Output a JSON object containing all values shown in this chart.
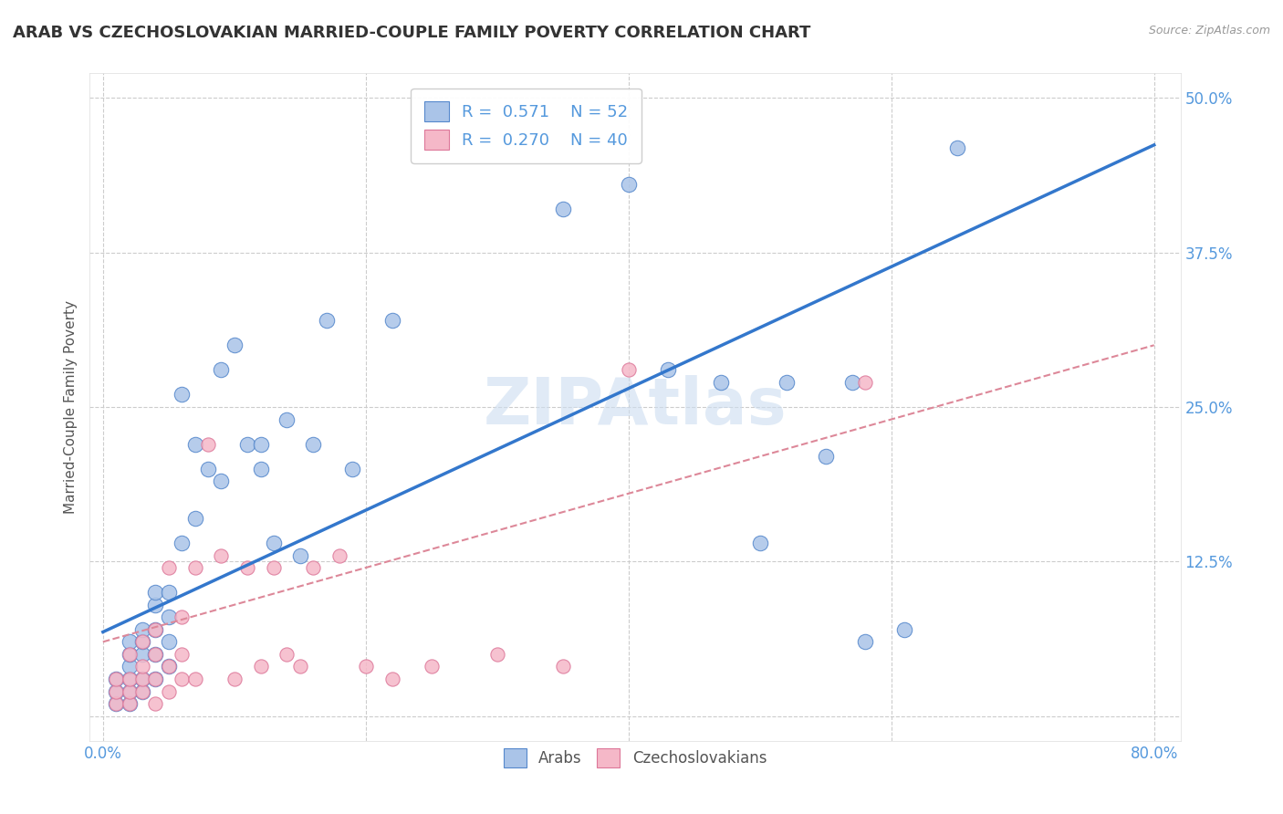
{
  "title": "ARAB VS CZECHOSLOVAKIAN MARRIED-COUPLE FAMILY POVERTY CORRELATION CHART",
  "source": "Source: ZipAtlas.com",
  "ylabel": "Married-Couple Family Poverty",
  "xlim": [
    -0.01,
    0.82
  ],
  "ylim": [
    -0.02,
    0.52
  ],
  "xtick_positions": [
    0.0,
    0.2,
    0.4,
    0.6,
    0.8
  ],
  "xticklabels": [
    "0.0%",
    "",
    "",
    "",
    "80.0%"
  ],
  "ytick_positions": [
    0.0,
    0.125,
    0.25,
    0.375,
    0.5
  ],
  "yticklabels": [
    "",
    "12.5%",
    "25.0%",
    "37.5%",
    "50.0%"
  ],
  "background_color": "#ffffff",
  "grid_color": "#cccccc",
  "watermark": "ZIPAtlas",
  "legend_R_arab": "0.571",
  "legend_N_arab": "52",
  "legend_R_czech": "0.270",
  "legend_N_czech": "40",
  "arab_color": "#aac4e8",
  "arab_edge_color": "#5588cc",
  "czech_color": "#f5b8c8",
  "czech_edge_color": "#dd7799",
  "arab_line_color": "#3377cc",
  "czech_line_color": "#dd8899",
  "title_color": "#333333",
  "label_color": "#555555",
  "tick_color": "#5599dd",
  "arab_line_y0": 0.068,
  "arab_line_y1": 0.462,
  "czech_line_y0": 0.06,
  "czech_line_y1": 0.3,
  "arab_scatter_x": [
    0.01,
    0.01,
    0.01,
    0.02,
    0.02,
    0.02,
    0.02,
    0.02,
    0.02,
    0.03,
    0.03,
    0.03,
    0.03,
    0.03,
    0.04,
    0.04,
    0.04,
    0.04,
    0.04,
    0.05,
    0.05,
    0.05,
    0.05,
    0.06,
    0.06,
    0.07,
    0.07,
    0.08,
    0.09,
    0.09,
    0.1,
    0.11,
    0.12,
    0.12,
    0.13,
    0.14,
    0.15,
    0.16,
    0.17,
    0.19,
    0.22,
    0.35,
    0.4,
    0.43,
    0.47,
    0.5,
    0.52,
    0.55,
    0.57,
    0.58,
    0.61,
    0.65
  ],
  "arab_scatter_y": [
    0.01,
    0.02,
    0.03,
    0.01,
    0.02,
    0.03,
    0.04,
    0.05,
    0.06,
    0.02,
    0.03,
    0.05,
    0.06,
    0.07,
    0.03,
    0.05,
    0.07,
    0.09,
    0.1,
    0.04,
    0.06,
    0.08,
    0.1,
    0.14,
    0.26,
    0.16,
    0.22,
    0.2,
    0.19,
    0.28,
    0.3,
    0.22,
    0.2,
    0.22,
    0.14,
    0.24,
    0.13,
    0.22,
    0.32,
    0.2,
    0.32,
    0.41,
    0.43,
    0.28,
    0.27,
    0.14,
    0.27,
    0.21,
    0.27,
    0.06,
    0.07,
    0.46
  ],
  "czech_scatter_x": [
    0.01,
    0.01,
    0.01,
    0.02,
    0.02,
    0.02,
    0.02,
    0.03,
    0.03,
    0.03,
    0.03,
    0.04,
    0.04,
    0.04,
    0.04,
    0.05,
    0.05,
    0.05,
    0.06,
    0.06,
    0.06,
    0.07,
    0.07,
    0.08,
    0.09,
    0.1,
    0.11,
    0.12,
    0.13,
    0.14,
    0.15,
    0.16,
    0.18,
    0.2,
    0.22,
    0.25,
    0.3,
    0.35,
    0.4,
    0.58
  ],
  "czech_scatter_y": [
    0.01,
    0.02,
    0.03,
    0.01,
    0.02,
    0.03,
    0.05,
    0.02,
    0.03,
    0.04,
    0.06,
    0.01,
    0.03,
    0.05,
    0.07,
    0.02,
    0.04,
    0.12,
    0.03,
    0.05,
    0.08,
    0.03,
    0.12,
    0.22,
    0.13,
    0.03,
    0.12,
    0.04,
    0.12,
    0.05,
    0.04,
    0.12,
    0.13,
    0.04,
    0.03,
    0.04,
    0.05,
    0.04,
    0.28,
    0.27
  ]
}
